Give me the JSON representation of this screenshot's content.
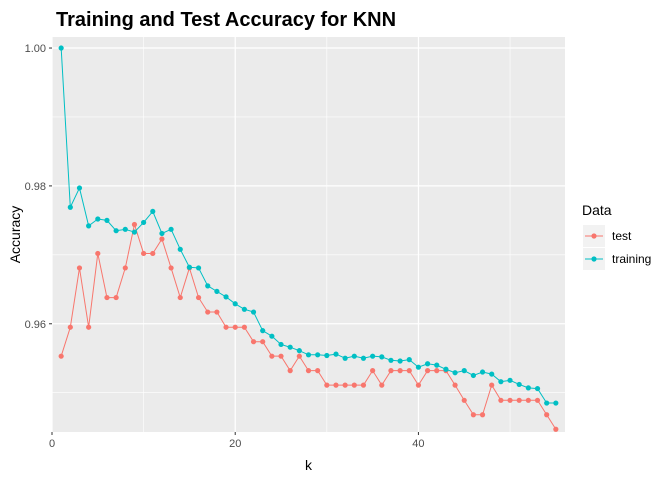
{
  "chart_data": {
    "type": "line",
    "title": "Training and Test Accuracy for KNN",
    "xlabel": "k",
    "ylabel": "Accuracy",
    "xlim": [
      0,
      56
    ],
    "ylim": [
      0.9443,
      1.0016
    ],
    "x_ticks": [
      0,
      20,
      40
    ],
    "y_ticks": [
      0.96,
      0.98,
      1.0
    ],
    "y_tick_labels": [
      "0.96",
      "0.98",
      "1.00"
    ],
    "grid": true,
    "legend": {
      "title": "Data",
      "position": "right"
    },
    "x": [
      1,
      2,
      3,
      4,
      5,
      6,
      7,
      8,
      9,
      10,
      11,
      12,
      13,
      14,
      15,
      16,
      17,
      18,
      19,
      20,
      21,
      22,
      23,
      24,
      25,
      26,
      27,
      28,
      29,
      30,
      31,
      32,
      33,
      34,
      35,
      36,
      37,
      38,
      39,
      40,
      41,
      42,
      43,
      44,
      45,
      46,
      47,
      48,
      49,
      50,
      51,
      52,
      53,
      54,
      55
    ],
    "series": [
      {
        "name": "test",
        "color": "#F8766D",
        "values": [
          0.9553,
          0.9595,
          0.9681,
          0.9595,
          0.9702,
          0.9638,
          0.9638,
          0.9681,
          0.9744,
          0.9702,
          0.9702,
          0.9723,
          0.9681,
          0.9638,
          0.9681,
          0.9638,
          0.9617,
          0.9617,
          0.9595,
          0.9595,
          0.9595,
          0.9574,
          0.9574,
          0.9553,
          0.9553,
          0.9532,
          0.9553,
          0.9532,
          0.9532,
          0.9511,
          0.9511,
          0.9511,
          0.9511,
          0.9511,
          0.9532,
          0.9511,
          0.9532,
          0.9532,
          0.9532,
          0.9511,
          0.9532,
          0.9532,
          0.9532,
          0.9511,
          0.9489,
          0.9468,
          0.9468,
          0.9511,
          0.9489,
          0.9489,
          0.9489,
          0.9489,
          0.9489,
          0.9468,
          0.9447
        ]
      },
      {
        "name": "training",
        "color": "#00BFC4",
        "values": [
          1.0,
          0.9769,
          0.9797,
          0.9742,
          0.9752,
          0.975,
          0.9735,
          0.9737,
          0.9733,
          0.9747,
          0.9763,
          0.9731,
          0.9737,
          0.9708,
          0.9682,
          0.9681,
          0.9655,
          0.9647,
          0.9639,
          0.9629,
          0.9621,
          0.9617,
          0.959,
          0.9582,
          0.957,
          0.9566,
          0.9561,
          0.9555,
          0.9555,
          0.9554,
          0.9556,
          0.955,
          0.9553,
          0.955,
          0.9553,
          0.9552,
          0.9547,
          0.9546,
          0.9548,
          0.9537,
          0.9542,
          0.954,
          0.9534,
          0.9529,
          0.9532,
          0.9525,
          0.953,
          0.9527,
          0.9516,
          0.9518,
          0.9512,
          0.9507,
          0.9506,
          0.9485,
          0.9485
        ]
      }
    ]
  }
}
